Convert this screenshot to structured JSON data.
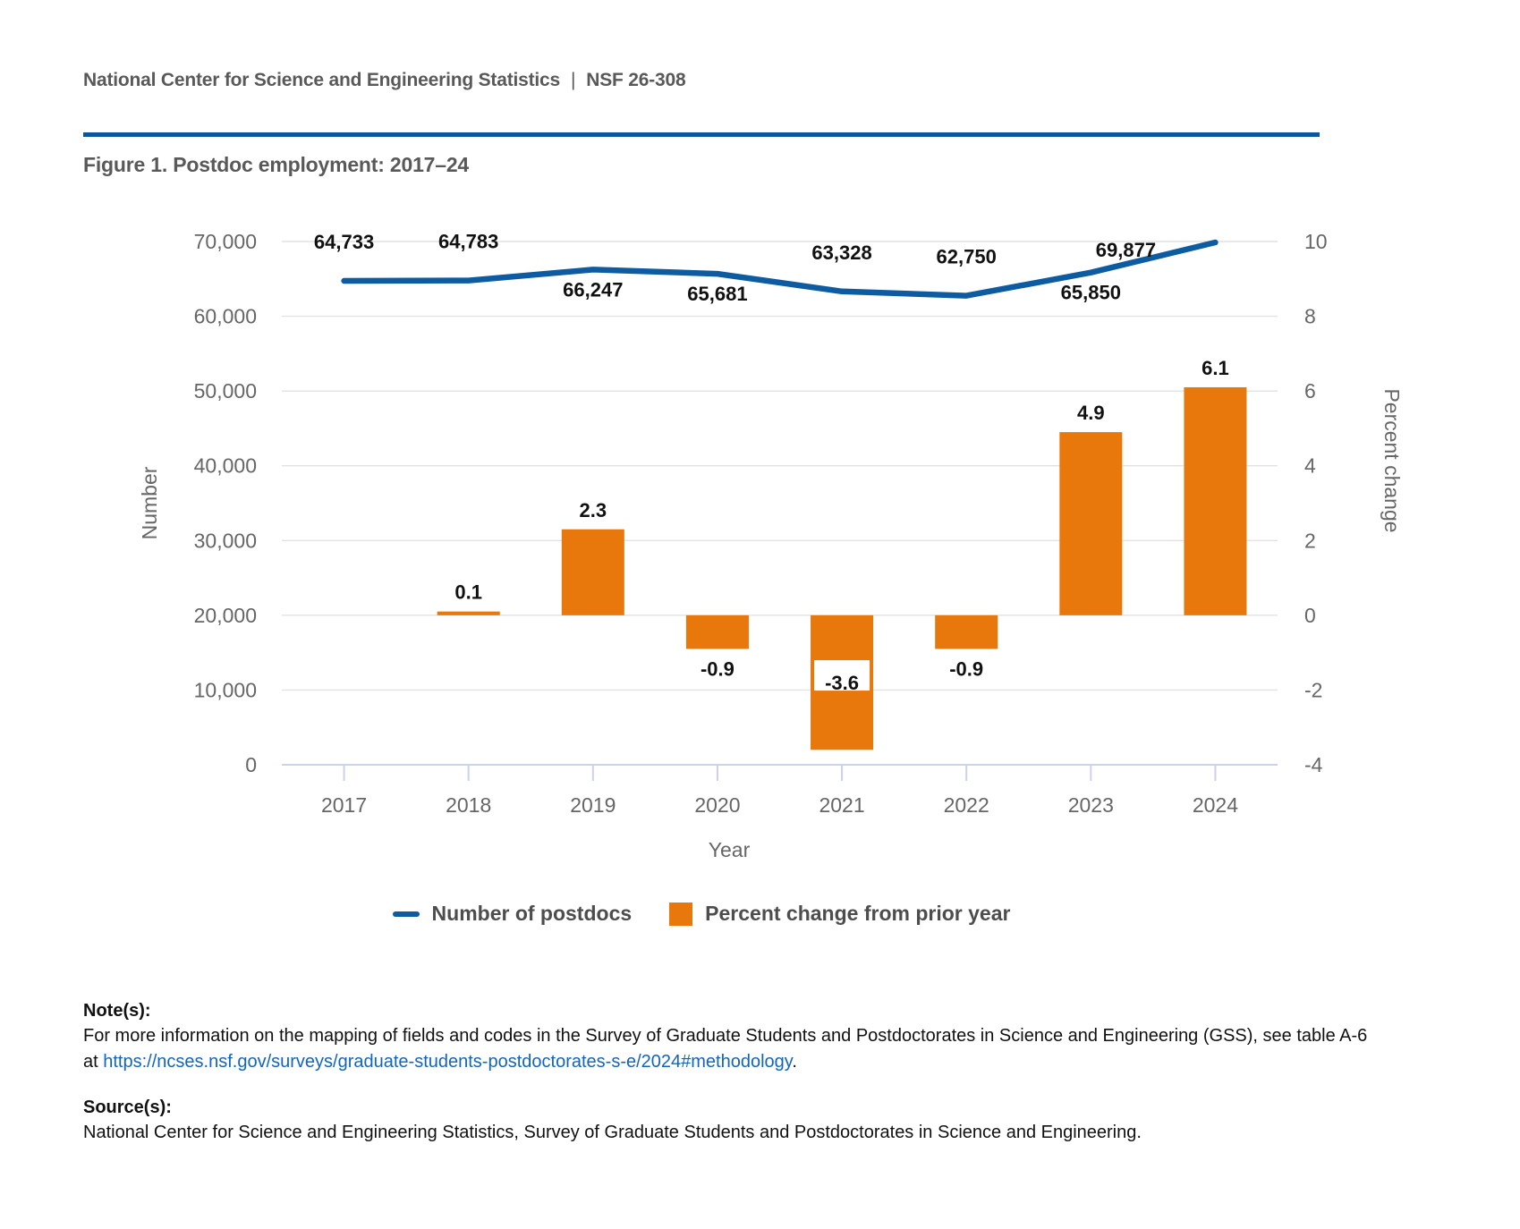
{
  "page": {
    "header": {
      "left": "National Center for Science and Engineering Statistics",
      "separator": "|",
      "right": "NSF 26-308"
    },
    "figure_title": "Figure 1. Postdoc employment: 2017–24",
    "notes": {
      "heading": "Note(s):",
      "line1": "For more information on the mapping of fields and codes in the Survey of Graduate Students and Postdoctorates in Science and Engineering (GSS), see table A-6",
      "line2_prefix": "at ",
      "link_text": "https://ncses.nsf.gov/surveys/graduate-students-postdoctorates-s-e/2024#methodology",
      "link_href": "https://ncses.nsf.gov/surveys/graduate-students-postdoctorates-s-e/2024#methodology",
      "line2_suffix": "."
    },
    "sources": {
      "heading": "Source(s):",
      "text": "National Center for Science and Engineering Statistics, Survey of Graduate Students and Postdoctorates in Science and Engineering."
    },
    "colors": {
      "rule_blue": "#0d559c",
      "link_blue": "#1265bd"
    }
  },
  "chart_data": {
    "type": "combo-line-bar",
    "x": [
      "2017",
      "2018",
      "2019",
      "2020",
      "2021",
      "2022",
      "2023",
      "2024"
    ],
    "series": [
      {
        "name": "Number of postdocs",
        "type": "line",
        "axis": "left",
        "color": "#0d5ba1",
        "values": [
          64733,
          64783,
          66247,
          65681,
          63328,
          62750,
          65850,
          69877
        ],
        "labels": [
          "64,733",
          "64,783",
          "66,247",
          "65,681",
          "63,328",
          "62,750",
          "65,850",
          "69,877"
        ],
        "label_placement": [
          "above",
          "above",
          "below",
          "below",
          "above",
          "above",
          "below",
          "below-left"
        ]
      },
      {
        "name": "Percent change from prior year",
        "type": "bar",
        "axis": "right",
        "color": "#e8770c",
        "values": [
          null,
          0.1,
          2.3,
          -0.9,
          -3.6,
          -0.9,
          4.9,
          6.1
        ],
        "labels": [
          null,
          "0.1",
          "2.3",
          "-0.9",
          "-3.6",
          "-0.9",
          "4.9",
          "6.1"
        ],
        "label_placement": [
          null,
          "above",
          "above",
          "below",
          "inside",
          "below",
          "above",
          "above"
        ]
      }
    ],
    "left_axis": {
      "title": "Number",
      "min": 0,
      "max": 70000,
      "step": 10000
    },
    "right_axis": {
      "title": "Percent change",
      "min": -4,
      "max": 10,
      "step": 2
    },
    "x_axis": {
      "title": "Year"
    },
    "grid": true,
    "grid_color": "#e2e2e2",
    "axis_line_color": "#c9d3ea",
    "legend_position": "bottom"
  }
}
